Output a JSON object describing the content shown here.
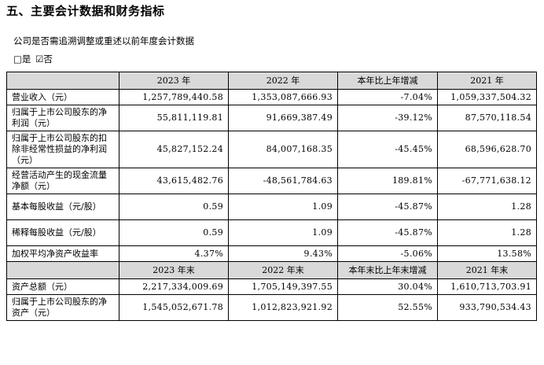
{
  "section_title": "五、主要会计数据和财务指标",
  "question": "公司是否需追溯调整或重述以前年度会计数据",
  "options": {
    "yes": "□是",
    "no": "☑否"
  },
  "table": {
    "header1": [
      "",
      "2023 年",
      "2022 年",
      "本年比上年增减",
      "2021 年"
    ],
    "rows1": [
      {
        "label": "营业收入（元）",
        "values": [
          "1,257,789,440.58",
          "1,353,087,666.93",
          "-7.04%",
          "1,059,337,504.32"
        ]
      },
      {
        "label": "归属于上市公司股东的净利润（元）",
        "values": [
          "55,811,119.81",
          "91,669,387.49",
          "-39.12%",
          "87,570,118.54"
        ]
      },
      {
        "label": "归属于上市公司股东的扣除非经常性损益的净利润（元）",
        "values": [
          "45,827,152.24",
          "84,007,168.35",
          "-45.45%",
          "68,596,628.70"
        ]
      },
      {
        "label": "经营活动产生的现金流量净额（元）",
        "values": [
          "43,615,482.76",
          "-48,561,784.63",
          "189.81%",
          "-67,771,638.12"
        ]
      },
      {
        "label": "基本每股收益（元/股）",
        "values": [
          "0.59",
          "1.09",
          "-45.87%",
          "1.28"
        ]
      },
      {
        "label": "稀释每股收益（元/股）",
        "values": [
          "0.59",
          "1.09",
          "-45.87%",
          "1.28"
        ]
      },
      {
        "label": "加权平均净资产收益率",
        "values": [
          "4.37%",
          "9.43%",
          "-5.06%",
          "13.58%"
        ]
      }
    ],
    "header2": [
      "",
      "2023 年末",
      "2022 年末",
      "本年末比上年末增减",
      "2021 年末"
    ],
    "rows2": [
      {
        "label": "资产总额（元）",
        "values": [
          "2,217,334,009.69",
          "1,705,149,397.55",
          "30.04%",
          "1,610,713,703.91"
        ]
      },
      {
        "label": "归属于上市公司股东的净资产（元）",
        "values": [
          "1,545,052,671.78",
          "1,012,823,921.92",
          "52.55%",
          "933,790,534.43"
        ]
      }
    ]
  }
}
